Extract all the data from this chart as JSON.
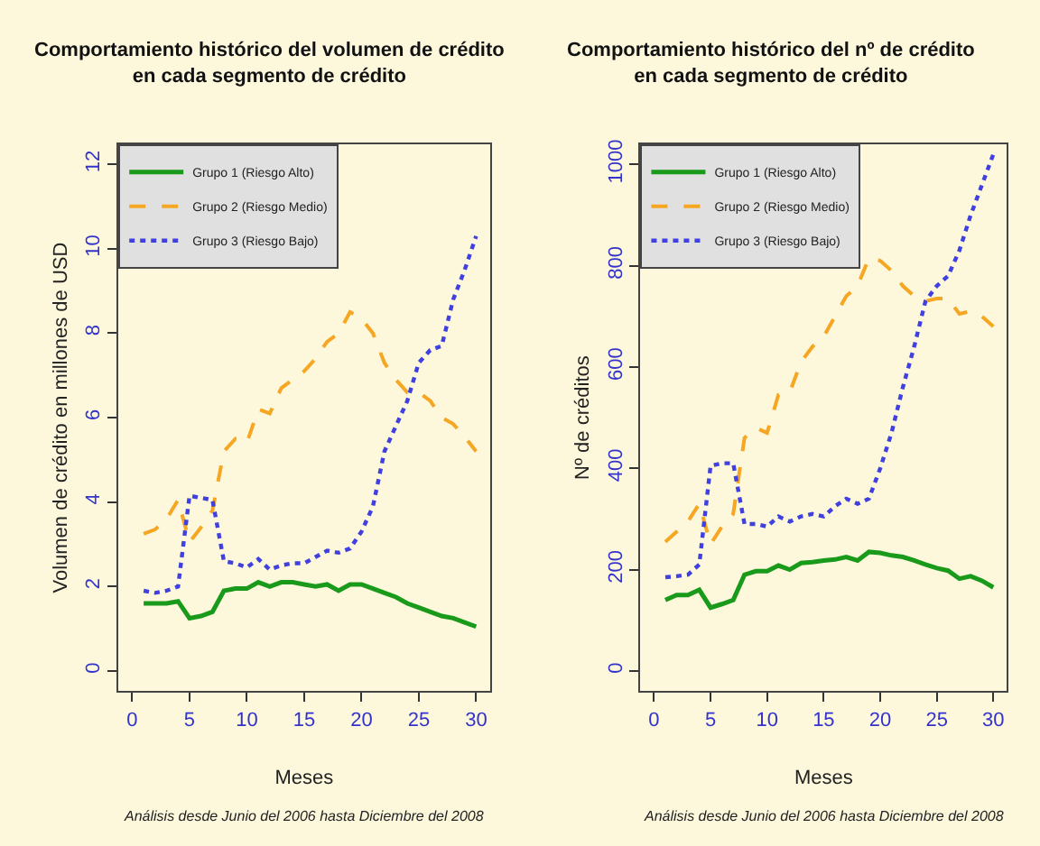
{
  "chart_data": [
    {
      "type": "line",
      "title": "Comportamiento histórico del volumen de crédito\nen cada segmento de crédito",
      "xlabel": "Meses",
      "ylabel": "Volumen de crédito en millones de USD",
      "x": [
        1,
        2,
        3,
        4,
        5,
        6,
        7,
        8,
        9,
        10,
        11,
        12,
        13,
        14,
        15,
        16,
        17,
        18,
        19,
        20,
        21,
        22,
        23,
        24,
        25,
        26,
        27,
        28,
        29,
        30
      ],
      "xlim": [
        -1.2,
        31.2
      ],
      "xticks": [
        0,
        5,
        10,
        15,
        20,
        25,
        30
      ],
      "ylim": [
        -0.48,
        12.48
      ],
      "yticks": [
        0,
        2,
        4,
        6,
        8,
        10,
        12
      ],
      "grid": false,
      "legend": "top left",
      "annotations": [
        "Análisis desde Junio del 2006 hasta Diciembre del 2008"
      ],
      "series": [
        {
          "name": "Grupo 1 (Riesgo Alto)",
          "color": "#1a9a1a",
          "line_style": "solid",
          "values": [
            1.6,
            1.6,
            1.6,
            1.65,
            1.25,
            1.3,
            1.4,
            1.9,
            1.95,
            1.95,
            2.1,
            2.0,
            2.1,
            2.1,
            2.05,
            2.0,
            2.05,
            1.9,
            2.05,
            2.05,
            1.95,
            1.85,
            1.75,
            1.6,
            1.5,
            1.4,
            1.3,
            1.25,
            1.15,
            1.05
          ]
        },
        {
          "name": "Grupo 2 (Riesgo Medio)",
          "color": "#f5a623",
          "line_style": "dashed",
          "values": [
            3.25,
            3.35,
            3.6,
            4.05,
            3.05,
            3.4,
            3.8,
            5.2,
            5.5,
            5.4,
            6.2,
            6.1,
            6.7,
            6.9,
            7.1,
            7.4,
            7.8,
            8.0,
            8.5,
            8.35,
            8.0,
            7.3,
            6.9,
            6.6,
            6.6,
            6.4,
            6.0,
            5.85,
            5.55,
            5.2
          ]
        },
        {
          "name": "Grupo 3 (Riesgo Bajo)",
          "color": "#4040e0",
          "line_style": "dotted",
          "values": [
            1.9,
            1.85,
            1.9,
            2.0,
            4.15,
            4.1,
            4.05,
            2.6,
            2.55,
            2.45,
            2.65,
            2.4,
            2.5,
            2.55,
            2.55,
            2.7,
            2.85,
            2.8,
            2.9,
            3.3,
            3.9,
            5.2,
            5.8,
            6.4,
            7.3,
            7.6,
            7.7,
            8.8,
            9.5,
            10.3
          ]
        }
      ]
    },
    {
      "type": "line",
      "title": "Comportamiento histórico del nº de crédito\nen cada segmento de crédito",
      "xlabel": "Meses",
      "ylabel": "Nº de créditos",
      "x": [
        1,
        2,
        3,
        4,
        5,
        6,
        7,
        8,
        9,
        10,
        11,
        12,
        13,
        14,
        15,
        16,
        17,
        18,
        19,
        20,
        21,
        22,
        23,
        24,
        25,
        26,
        27,
        28,
        29,
        30
      ],
      "xlim": [
        -1.2,
        31.2
      ],
      "xticks": [
        0,
        5,
        10,
        15,
        20,
        25,
        30
      ],
      "ylim": [
        -40,
        1040
      ],
      "yticks": [
        0,
        200,
        400,
        600,
        800,
        1000
      ],
      "grid": false,
      "legend": "top left",
      "annotations": [
        "Análisis desde Junio del 2006 hasta Diciembre del 2008"
      ],
      "series": [
        {
          "name": "Grupo 1 (Riesgo Alto)",
          "color": "#1a9a1a",
          "line_style": "solid",
          "values": [
            140,
            150,
            150,
            160,
            125,
            132,
            140,
            190,
            197,
            197,
            208,
            200,
            213,
            215,
            218,
            220,
            225,
            218,
            235,
            233,
            228,
            225,
            218,
            210,
            203,
            198,
            182,
            187,
            178,
            165
          ]
        },
        {
          "name": "Grupo 2 (Riesgo Medio)",
          "color": "#f5a623",
          "line_style": "dashed",
          "values": [
            255,
            275,
            295,
            330,
            250,
            285,
            310,
            460,
            480,
            470,
            545,
            550,
            610,
            640,
            660,
            700,
            740,
            760,
            815,
            810,
            790,
            760,
            740,
            730,
            735,
            735,
            705,
            710,
            700,
            680
          ]
        },
        {
          "name": "Grupo 3 (Riesgo Bajo)",
          "color": "#4040e0",
          "line_style": "dotted",
          "values": [
            185,
            187,
            190,
            210,
            405,
            410,
            410,
            290,
            290,
            285,
            305,
            295,
            305,
            310,
            305,
            325,
            340,
            330,
            340,
            400,
            470,
            560,
            640,
            730,
            760,
            780,
            830,
            900,
            960,
            1020
          ]
        }
      ]
    }
  ]
}
